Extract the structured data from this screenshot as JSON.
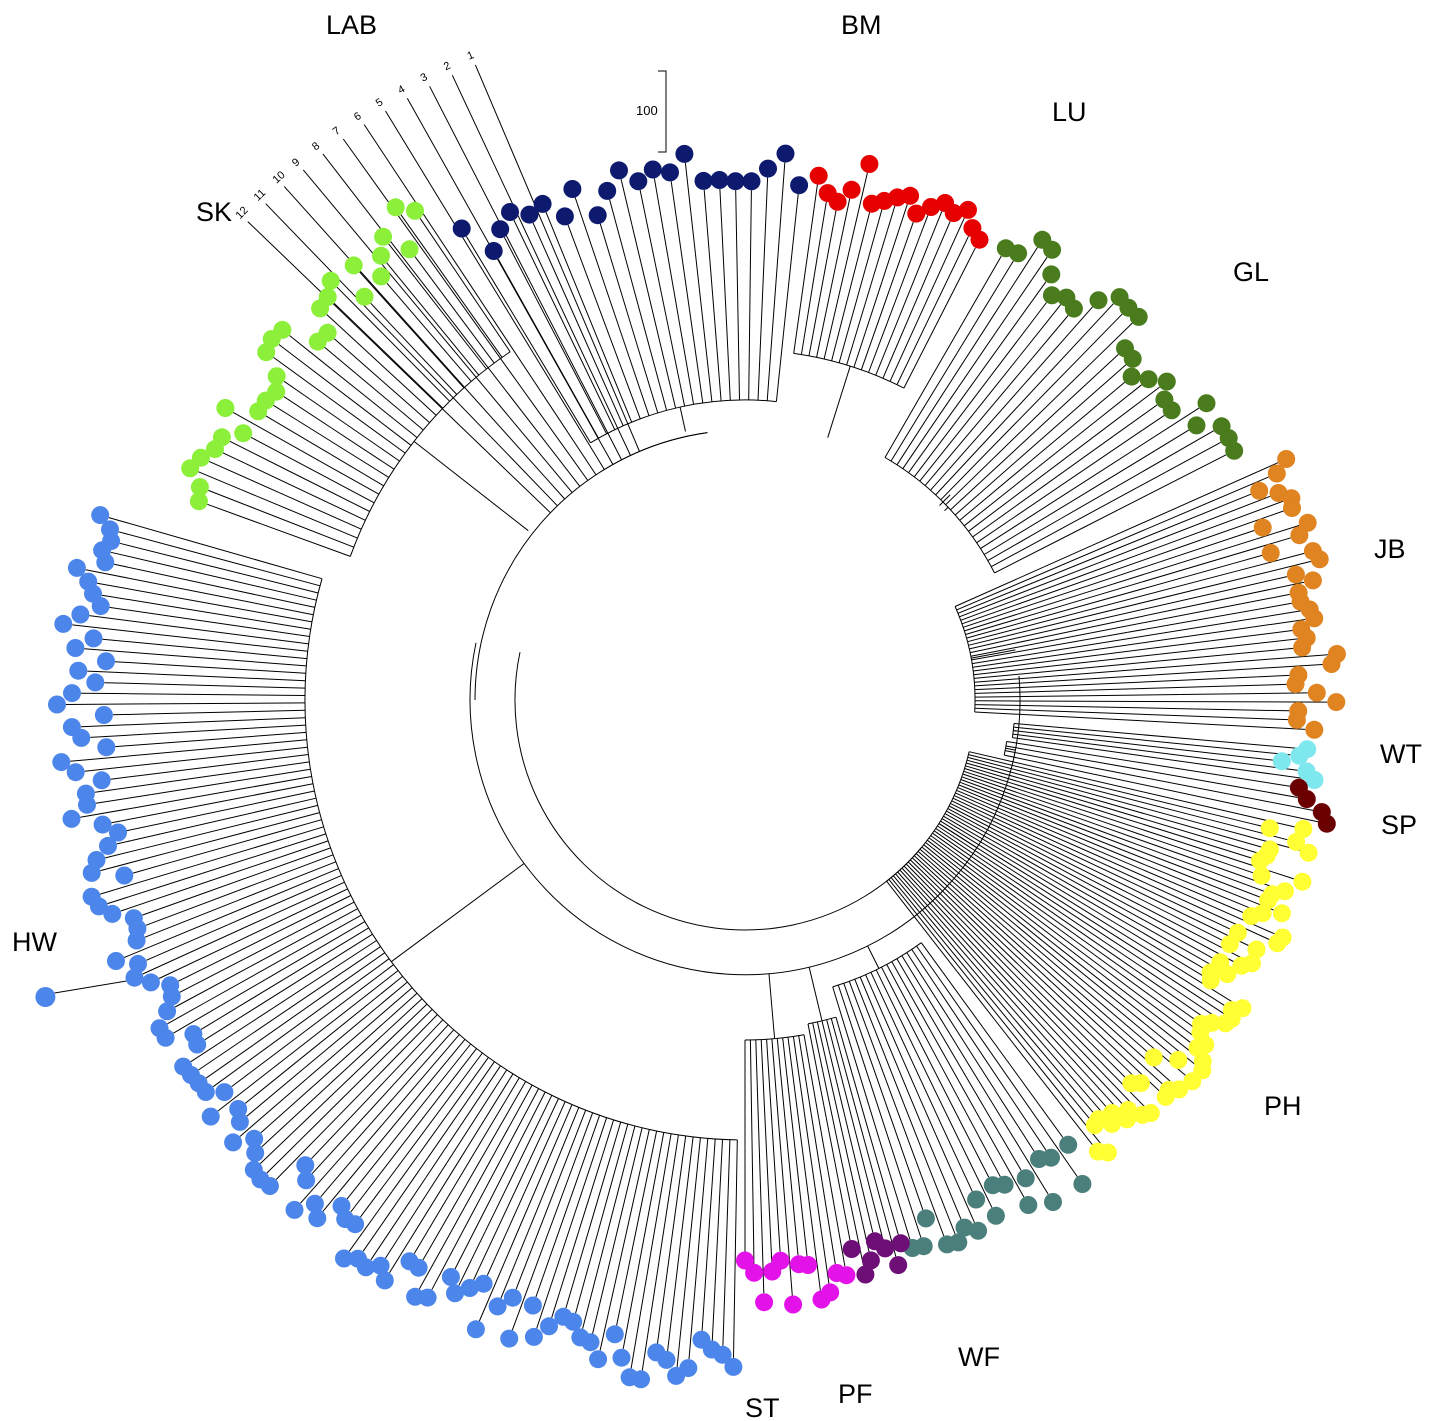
{
  "figure": {
    "type": "circular phylogenetic tree",
    "scale_bar": {
      "label": "100"
    },
    "lab_strains": [
      "1",
      "2",
      "3",
      "4",
      "5",
      "6",
      "7",
      "8",
      "9",
      "10",
      "11",
      "12"
    ],
    "clades": [
      {
        "id": "BM",
        "label": "BM",
        "color": "#0d1a6e",
        "tips": 22
      },
      {
        "id": "LU",
        "label": "LU",
        "color": "#e60000",
        "tips": 16
      },
      {
        "id": "GL",
        "label": "GL",
        "color": "#4a7c1e",
        "tips": 24
      },
      {
        "id": "JB",
        "label": "JB",
        "color": "#e08321",
        "tips": 30
      },
      {
        "id": "WT",
        "label": "WT",
        "color": "#7fe8ee",
        "tips": 5
      },
      {
        "id": "SP",
        "label": "SP",
        "color": "#6b0000",
        "tips": 4
      },
      {
        "id": "PH",
        "label": "PH",
        "color": "#ffff33",
        "tips": 55
      },
      {
        "id": "WF",
        "label": "WF",
        "color": "#4a7f7c",
        "tips": 18
      },
      {
        "id": "PF",
        "label": "PF",
        "color": "#6e0f78",
        "tips": 7
      },
      {
        "id": "ST",
        "label": "ST",
        "color": "#e312e8",
        "tips": 12
      },
      {
        "id": "HW",
        "label": "HW",
        "color": "#4d86ea",
        "tips": 110
      },
      {
        "id": "SK",
        "label": "SK",
        "color": "#8cf03a",
        "tips": 28
      },
      {
        "id": "LAB",
        "label": "LAB",
        "color": "#000000",
        "tips": 12
      }
    ]
  }
}
